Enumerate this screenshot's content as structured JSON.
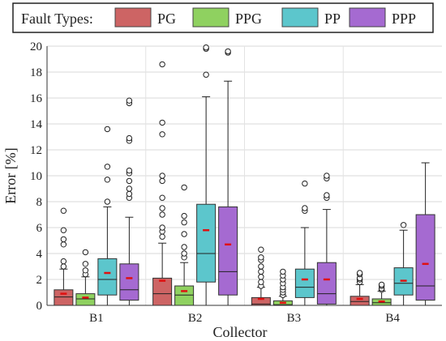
{
  "chart_data": {
    "type": "box",
    "xlabel": "Collector",
    "ylabel": "Error [%]",
    "ylim": [
      0,
      20
    ],
    "yticks": [
      0,
      2,
      4,
      6,
      8,
      10,
      12,
      14,
      16,
      18,
      20
    ],
    "grid": true,
    "legend": {
      "title": "Fault Types:",
      "placement": "top",
      "entries": [
        {
          "label": "PG",
          "color": "#cd6464"
        },
        {
          "label": "PPG",
          "color": "#8fd160"
        },
        {
          "label": "PP",
          "color": "#5cc6cc"
        },
        {
          "label": "PPP",
          "color": "#a56ad1"
        }
      ]
    },
    "categories": [
      "B1",
      "B2",
      "B3",
      "B4"
    ],
    "series": [
      {
        "name": "PG",
        "boxes": [
          {
            "category": "B1",
            "whisker_low": 0.0,
            "q1": 0.0,
            "median": 0.65,
            "q3": 1.2,
            "whisker_high": 2.8,
            "mean": 0.9,
            "outliers": [
              3.0,
              3.4,
              4.7,
              5.1,
              5.8,
              7.3
            ]
          },
          {
            "category": "B2",
            "whisker_low": 0.0,
            "q1": 0.0,
            "median": 0.9,
            "q3": 2.1,
            "whisker_high": 4.8,
            "mean": 1.9,
            "outliers": [
              5.3,
              5.7,
              6.0,
              7.0,
              7.5,
              8.3,
              9.6,
              10.0,
              13.2,
              14.1,
              18.6
            ]
          },
          {
            "category": "B3",
            "whisker_low": 0.0,
            "q1": 0.0,
            "median": 0.1,
            "q3": 0.6,
            "whisker_high": 1.4,
            "mean": 0.5,
            "outliers": [
              1.5,
              1.8,
              2.2,
              2.6,
              3.0,
              3.5,
              3.7,
              4.3
            ]
          },
          {
            "category": "B4",
            "whisker_low": 0.0,
            "q1": 0.0,
            "median": 0.3,
            "q3": 0.7,
            "whisker_high": 1.6,
            "mean": 0.5,
            "outliers": [
              1.8,
              2.0,
              2.1,
              2.4,
              2.5
            ]
          }
        ]
      },
      {
        "name": "PPG",
        "boxes": [
          {
            "category": "B1",
            "whisker_low": 0.0,
            "q1": 0.0,
            "median": 0.5,
            "q3": 0.9,
            "whisker_high": 2.2,
            "mean": 0.6,
            "outliers": [
              2.4,
              2.7,
              3.2,
              4.1
            ]
          },
          {
            "category": "B2",
            "whisker_low": 0.0,
            "q1": 0.0,
            "median": 0.8,
            "q3": 1.5,
            "whisker_high": 3.3,
            "mean": 1.1,
            "outliers": [
              3.7,
              4.0,
              4.5,
              5.5,
              6.4,
              6.9,
              9.1
            ]
          },
          {
            "category": "B3",
            "whisker_low": 0.0,
            "q1": 0.0,
            "median": 0.05,
            "q3": 0.35,
            "whisker_high": 0.7,
            "mean": 0.2,
            "outliers": [
              0.8,
              1.0,
              1.2,
              1.4,
              1.7,
              2.0,
              2.3,
              2.6
            ]
          },
          {
            "category": "B4",
            "whisker_low": 0.0,
            "q1": 0.0,
            "median": 0.2,
            "q3": 0.5,
            "whisker_high": 1.1,
            "mean": 0.3,
            "outliers": [
              1.2,
              1.3,
              1.5,
              1.6
            ]
          }
        ]
      },
      {
        "name": "PP",
        "boxes": [
          {
            "category": "B1",
            "whisker_low": 0.0,
            "q1": 0.8,
            "median": 2.0,
            "q3": 3.6,
            "whisker_high": 7.6,
            "mean": 2.5,
            "outliers": [
              8.0,
              9.7,
              10.7,
              13.6
            ]
          },
          {
            "category": "B2",
            "whisker_low": 0.0,
            "q1": 1.8,
            "median": 4.0,
            "q3": 7.8,
            "whisker_high": 16.1,
            "mean": 5.8,
            "outliers": [
              17.8,
              19.8,
              19.9
            ]
          },
          {
            "category": "B3",
            "whisker_low": 0.0,
            "q1": 0.6,
            "median": 1.4,
            "q3": 2.8,
            "whisker_high": 6.0,
            "mean": 2.0,
            "outliers": [
              7.3,
              7.5,
              9.4
            ]
          },
          {
            "category": "B4",
            "whisker_low": 0.0,
            "q1": 0.8,
            "median": 1.7,
            "q3": 2.9,
            "whisker_high": 5.8,
            "mean": 1.9,
            "outliers": [
              6.2
            ]
          }
        ]
      },
      {
        "name": "PPP",
        "boxes": [
          {
            "category": "B1",
            "whisker_low": 0.0,
            "q1": 0.4,
            "median": 1.2,
            "q3": 3.2,
            "whisker_high": 6.8,
            "mean": 2.1,
            "outliers": [
              8.3,
              8.6,
              9.0,
              9.6,
              10.2,
              10.4,
              12.7,
              12.9,
              15.6,
              15.8
            ]
          },
          {
            "category": "B2",
            "whisker_low": 0.0,
            "q1": 0.8,
            "median": 2.6,
            "q3": 7.6,
            "whisker_high": 17.3,
            "mean": 4.7,
            "outliers": [
              19.5,
              19.6
            ]
          },
          {
            "category": "B3",
            "whisker_low": 0.0,
            "q1": 0.1,
            "median": 0.9,
            "q3": 3.3,
            "whisker_high": 7.4,
            "mean": 2.0,
            "outliers": [
              8.3,
              8.5,
              9.8,
              10.0
            ]
          },
          {
            "category": "B4",
            "whisker_low": 0.0,
            "q1": 0.4,
            "median": 1.5,
            "q3": 7.0,
            "whisker_high": 11.0,
            "mean": 3.2,
            "outliers": []
          }
        ]
      }
    ]
  }
}
